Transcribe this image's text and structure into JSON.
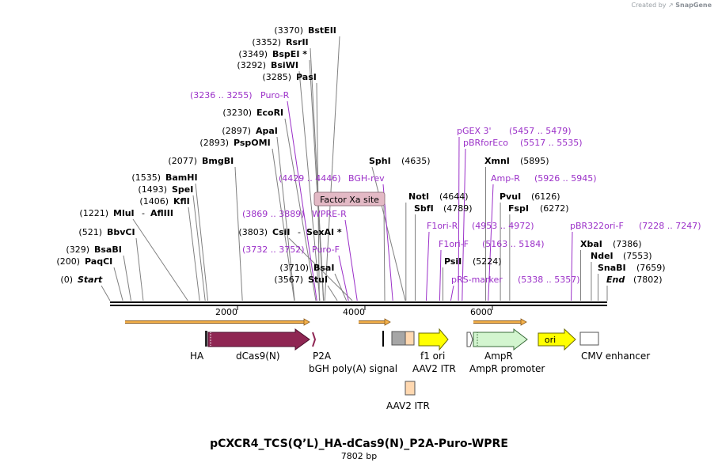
{
  "credit": {
    "prefix": "Created by",
    "brand": "SnapGene"
  },
  "plasmid": {
    "name": "pCXCR4_TCS(Q’L)_HA-dCas9(N)_P2A-Puro-WPRE",
    "length_label": "7802 bp",
    "length_bp": 7802
  },
  "scale": {
    "ticks": [
      {
        "bp": 2000,
        "label": "2000"
      },
      {
        "bp": 4000,
        "label": "4000"
      },
      {
        "bp": 6000,
        "label": "6000"
      }
    ]
  },
  "colors": {
    "enzyme": "#000000",
    "primer": "#9b30c8",
    "bar": "#000000",
    "dcas9": "#8f2653",
    "ampr": "#d3f5cf",
    "ori": "#ffff00",
    "f1ori": "#ffff00",
    "orf_arrow": "#f5b24c",
    "itr": "#ffd8b0",
    "bgh": "#a6a6a6",
    "cmv": "#ffffff",
    "factor_xa": "#e3b9c5"
  },
  "enzyme_sites": [
    {
      "pos": "(0)",
      "name": "Start",
      "italic": true
    },
    {
      "pos": "(200)",
      "name": "PaqCI"
    },
    {
      "pos": "(329)",
      "name": "BsaBI"
    },
    {
      "pos": "(521)",
      "name": "BbvCI"
    },
    {
      "pos": "(1221)",
      "name": "MluI",
      "extra": "AflIII"
    },
    {
      "pos": "(1406)",
      "name": "KflI"
    },
    {
      "pos": "(1493)",
      "name": "SpeI"
    },
    {
      "pos": "(1535)",
      "name": "BamHI"
    },
    {
      "pos": "(2077)",
      "name": "BmgBI"
    },
    {
      "pos": "(2893)",
      "name": "PspOMI"
    },
    {
      "pos": "(2897)",
      "name": "ApaI"
    },
    {
      "pos": "(3230)",
      "name": "EcoRI"
    },
    {
      "pos": "(3285)",
      "name": "PasI"
    },
    {
      "pos": "(3292)",
      "name": "BsiWI"
    },
    {
      "pos": "(3349)",
      "name": "BspEI *"
    },
    {
      "pos": "(3352)",
      "name": "RsrII"
    },
    {
      "pos": "(3370)",
      "name": "BstEII"
    },
    {
      "pos": "(3567)",
      "name": "StuI"
    },
    {
      "pos": "(3710)",
      "name": "BsaI"
    },
    {
      "pos": "(3803)",
      "name": "CsiI",
      "extra": "SexAI *"
    },
    {
      "pos": "(4635)",
      "name": "SphI"
    },
    {
      "pos": "(4644)",
      "name": "NotI"
    },
    {
      "pos": "(4789)",
      "name": "SbfI"
    },
    {
      "pos": "(5224)",
      "name": "PsiI"
    },
    {
      "pos": "(5895)",
      "name": "XmnI"
    },
    {
      "pos": "(6126)",
      "name": "PvuI"
    },
    {
      "pos": "(6272)",
      "name": "FspI"
    },
    {
      "pos": "(7386)",
      "name": "XbaI"
    },
    {
      "pos": "(7553)",
      "name": "NdeI"
    },
    {
      "pos": "(7659)",
      "name": "SnaBI"
    },
    {
      "pos": "(7802)",
      "name": "End",
      "italic": true
    }
  ],
  "primers": [
    {
      "name": "Puro-R",
      "range": "(3236 .. 3255)"
    },
    {
      "name": "BGH-rev",
      "range": "(4429 .. 4446)"
    },
    {
      "name": "WPRE-R",
      "range": "(3869 .. 3889)"
    },
    {
      "name": "Puro-F",
      "range": "(3732 .. 3752)"
    },
    {
      "name": "pGEX 3'",
      "range": "(5457 .. 5479)"
    },
    {
      "name": "pBRforEco",
      "range": "(5517 .. 5535)"
    },
    {
      "name": "Amp-R",
      "range": "(5926 .. 5945)"
    },
    {
      "name": "F1ori-R",
      "range": "(4953 .. 4972)"
    },
    {
      "name": "F1ori-F",
      "range": "(5163 .. 5184)"
    },
    {
      "name": "pRS-marker",
      "range": "(5338 .. 5357)"
    },
    {
      "name": "pBR322ori-F",
      "range": "(7228 .. 7247)"
    }
  ],
  "factor_xa": {
    "label": "Factor Xa site"
  },
  "features": [
    {
      "name": "HA"
    },
    {
      "name": "dCas9(N)"
    },
    {
      "name": "P2A"
    },
    {
      "name": "bGH poly(A) signal"
    },
    {
      "name": "f1 ori"
    },
    {
      "name": "AAV2 ITR"
    },
    {
      "name": "AmpR"
    },
    {
      "name": "AmpR promoter"
    },
    {
      "name": "ori"
    },
    {
      "name": "CMV enhancer"
    },
    {
      "name": "AAV2 ITR"
    }
  ]
}
